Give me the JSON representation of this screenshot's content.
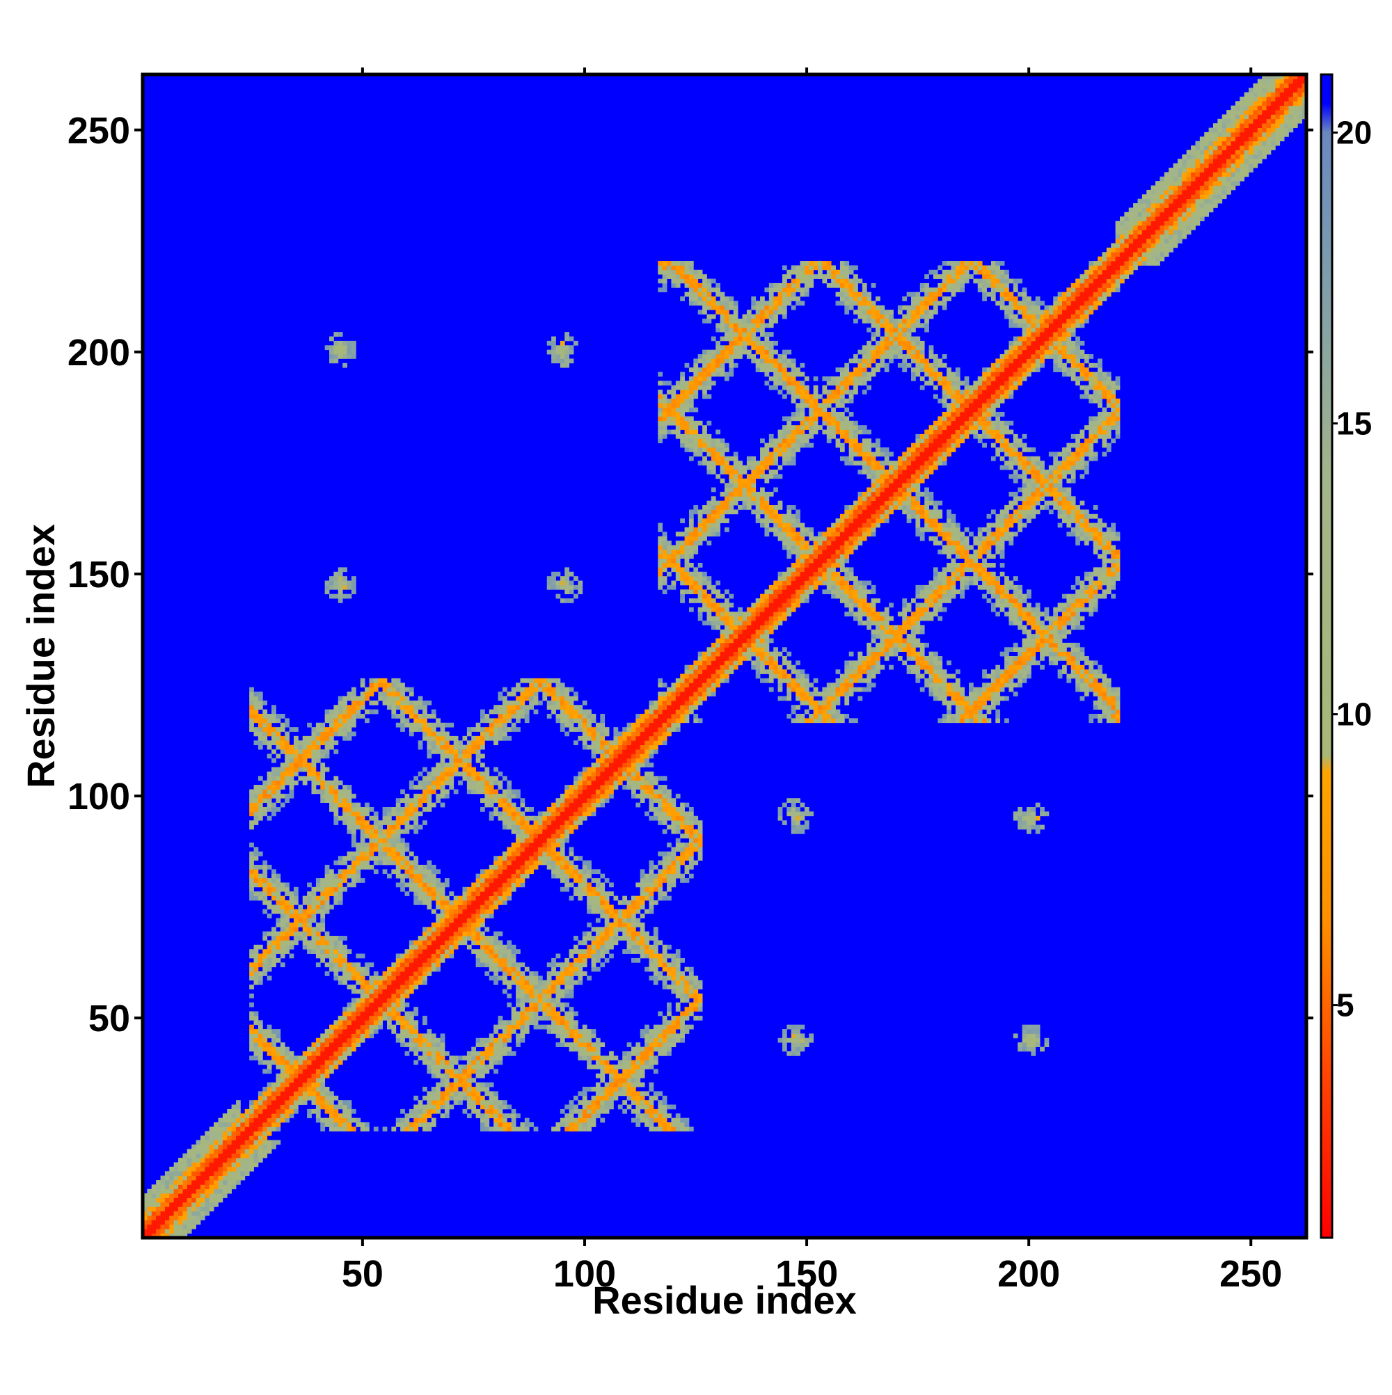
{
  "chart_data": {
    "type": "heatmap",
    "title": "",
    "xlabel": "Residue index",
    "ylabel": "Residue index",
    "xlim": [
      1,
      262
    ],
    "ylim": [
      1,
      262
    ],
    "x_ticks": [
      50,
      100,
      150,
      200,
      250
    ],
    "y_ticks": [
      50,
      100,
      150,
      200,
      250
    ],
    "colorbar": {
      "range": [
        1,
        21
      ],
      "ticks": [
        5,
        10,
        15,
        20
      ],
      "stops": [
        {
          "value": 1,
          "color": "#ff0000"
        },
        {
          "value": 4,
          "color": "#ff4a00"
        },
        {
          "value": 6.5,
          "color": "#ff9000"
        },
        {
          "value": 9,
          "color": "#ffa500"
        },
        {
          "value": 9.3,
          "color": "#a8b878"
        },
        {
          "value": 14,
          "color": "#a3b58a"
        },
        {
          "value": 18,
          "color": "#7a9ab0"
        },
        {
          "value": 20,
          "color": "#6a88c0"
        },
        {
          "value": 20.5,
          "color": "#0000ff"
        },
        {
          "value": 21,
          "color": "#0000ff"
        }
      ]
    },
    "background_value": 21,
    "background_color": "#0000ff",
    "structure": {
      "n_residues": 262,
      "diagonal_contact_band": {
        "from": 1,
        "to": 262
      },
      "n_terminal_domain": {
        "from": 25,
        "to": 126
      },
      "c_terminal_domain": {
        "from": 117,
        "to": 220
      },
      "c_terminal_helix_band": {
        "from": 220,
        "to": 262
      },
      "interdomain_contact_spots": [
        {
          "x": 45,
          "y": 200
        },
        {
          "x": 95,
          "y": 200
        },
        {
          "x": 45,
          "y": 148
        },
        {
          "x": 95,
          "y": 148
        },
        {
          "x": 147,
          "y": 96
        },
        {
          "x": 201,
          "y": 95
        },
        {
          "x": 147,
          "y": 45
        },
        {
          "x": 201,
          "y": 45
        }
      ]
    }
  }
}
